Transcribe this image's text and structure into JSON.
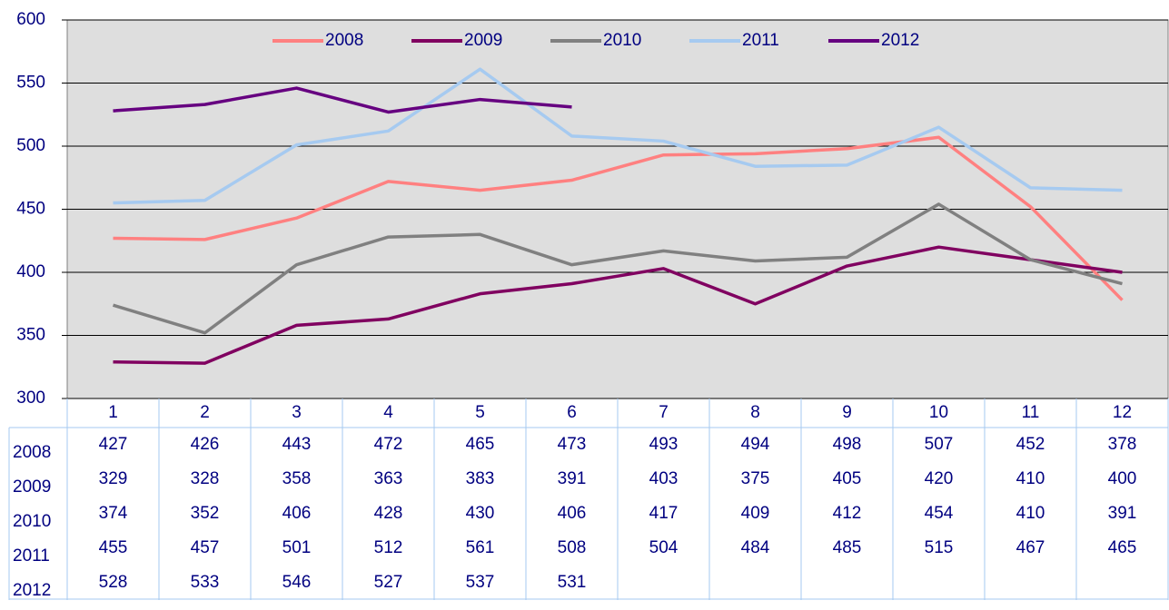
{
  "chart_data": {
    "type": "line",
    "categories": [
      "1",
      "2",
      "3",
      "4",
      "5",
      "6",
      "7",
      "8",
      "9",
      "10",
      "11",
      "12"
    ],
    "series": [
      {
        "name": "2008",
        "color": "#ff8080",
        "values": [
          427,
          426,
          443,
          472,
          465,
          473,
          493,
          494,
          498,
          507,
          452,
          378
        ]
      },
      {
        "name": "2009",
        "color": "#800060",
        "values": [
          329,
          328,
          358,
          363,
          383,
          391,
          403,
          375,
          405,
          420,
          410,
          400
        ]
      },
      {
        "name": "2010",
        "color": "#808080",
        "values": [
          374,
          352,
          406,
          428,
          430,
          406,
          417,
          409,
          412,
          454,
          410,
          391
        ]
      },
      {
        "name": "2011",
        "color": "#a6caf0",
        "values": [
          455,
          457,
          501,
          512,
          561,
          508,
          504,
          484,
          485,
          515,
          467,
          465
        ]
      },
      {
        "name": "2012",
        "color": "#660080",
        "values": [
          528,
          533,
          546,
          527,
          537,
          531,
          null,
          null,
          null,
          null,
          null,
          null
        ]
      }
    ],
    "ylim": [
      300,
      600
    ],
    "yticks": [
      300,
      350,
      400,
      450,
      500,
      550,
      600
    ],
    "grid": true,
    "legend": "top"
  }
}
